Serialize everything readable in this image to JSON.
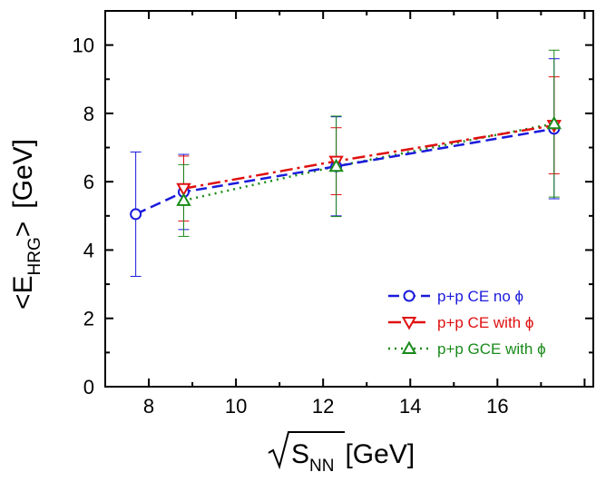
{
  "chart_data": {
    "type": "line",
    "xlabel": {
      "main": "S",
      "sub": "NN",
      "unit": "[GeV]"
    },
    "ylabel": {
      "main": "<E",
      "sub": "HRG",
      "close": ">",
      "unit": "[GeV]"
    },
    "xlim": [
      7.0,
      18.2
    ],
    "ylim": [
      0,
      11
    ],
    "xticks": [
      8,
      10,
      12,
      14,
      16
    ],
    "yticks": [
      0,
      2,
      4,
      6,
      8,
      10
    ],
    "xtick_labels": [
      "8",
      "10",
      "12",
      "14",
      "16"
    ],
    "ytick_labels": [
      "0",
      "2",
      "4",
      "6",
      "8",
      "10"
    ],
    "grid": false,
    "legend_position": "bottom-right",
    "series": [
      {
        "name": "p+p CE no ϕ",
        "color": "#1a1adc",
        "line_style": "dash",
        "marker": "circle",
        "x": [
          7.7,
          8.8,
          12.3,
          17.3
        ],
        "y": [
          5.05,
          5.7,
          6.45,
          7.55
        ],
        "err": [
          1.82,
          1.1,
          1.45,
          2.05
        ]
      },
      {
        "name": "p+p CE with ϕ",
        "color": "#e01010",
        "line_style": "dashdot",
        "marker": "triangle-down",
        "x": [
          8.8,
          12.3,
          17.3
        ],
        "y": [
          5.8,
          6.6,
          7.65
        ],
        "err": [
          0.95,
          0.98,
          1.42
        ]
      },
      {
        "name": "p+p GCE with ϕ",
        "color": "#1a8a1a",
        "line_style": "dot",
        "marker": "triangle-up",
        "x": [
          8.8,
          12.3,
          17.3
        ],
        "y": [
          5.45,
          6.45,
          7.7
        ],
        "err": [
          1.05,
          1.47,
          2.15
        ]
      }
    ]
  }
}
